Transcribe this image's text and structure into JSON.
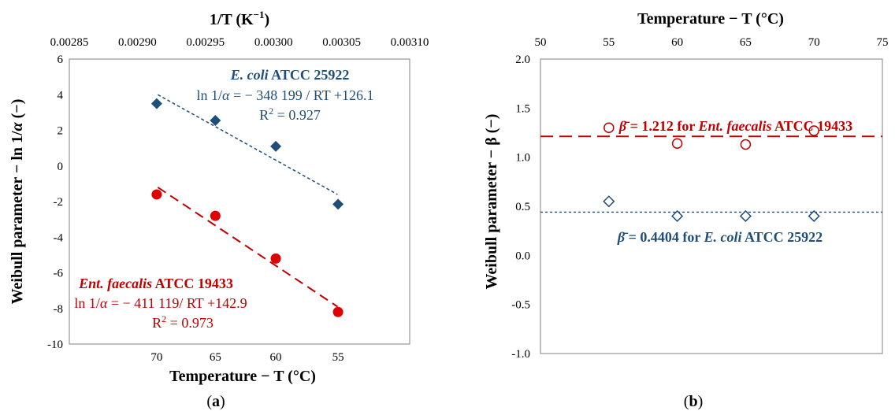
{
  "chart_data": [
    {
      "panel": "a",
      "type": "scatter",
      "panel_label": {
        "open": "(",
        "letter": "a",
        "close": ")"
      },
      "x_top": {
        "label_main": "1/T (K",
        "label_sup": "−1",
        "label_close": ")",
        "range": [
          0.00285,
          0.0031
        ],
        "ticks": [
          "0.00285",
          "0.00290",
          "0.00295",
          "0.00300",
          "0.00305",
          "0.00310"
        ]
      },
      "x_bottom": {
        "label": "Temperature − T (°C)",
        "ticks": [
          "70",
          "65",
          "60",
          "55"
        ]
      },
      "y": {
        "label_main": "Weibull parameter − ln 1/",
        "label_greek": "α",
        "label_tail": " (−)",
        "range": [
          -10,
          6
        ],
        "ticks": [
          "6",
          "4",
          "2",
          "0",
          "-2",
          "-4",
          "-6",
          "-8",
          "-10"
        ]
      },
      "grid": false,
      "series": [
        {
          "name": "E. coli ATCC 25922",
          "marker": "diamond",
          "color": "#1f4e79",
          "temperatures_C": [
            70,
            65,
            60,
            55
          ],
          "values": [
            3.5,
            2.55,
            1.1,
            -2.15
          ],
          "fit": {
            "x": [
              0.002915,
              0.003047
            ],
            "y": [
              4.0,
              -1.6
            ],
            "style": "short-dash"
          }
        },
        {
          "name": "Ent. faecalis ATCC 19433",
          "marker": "circle",
          "color": "#c00000",
          "temperatures_C": [
            70,
            65,
            60,
            55
          ],
          "values": [
            -1.6,
            -2.8,
            -5.2,
            -8.2
          ],
          "fit": {
            "x": [
              0.002915,
              0.003047
            ],
            "y": [
              -1.2,
              -7.9
            ],
            "style": "long-dash"
          }
        }
      ],
      "annotations": {
        "ecoli": {
          "name_italic": "E. coli",
          "name_rest": " ATCC 25922",
          "eq_prefix": "ln 1/",
          "eq_greek": "α",
          "eq_rest": " = − 348 199 / RT +126.1",
          "r2_prefix": "R",
          "r2_sup": "2",
          "r2_rest": " = 0.927"
        },
        "faecalis": {
          "name_italic": "Ent. faecalis",
          "name_rest": " ATCC 19433",
          "eq_prefix": "ln 1/",
          "eq_greek": "α",
          "eq_rest": " = − 411 119/ RT +142.9",
          "r2_prefix": "R",
          "r2_sup": "2",
          "r2_rest": " = 0.973"
        }
      }
    },
    {
      "panel": "b",
      "type": "scatter",
      "panel_label": {
        "open": "(",
        "letter": "b",
        "close": ")"
      },
      "x_top": {
        "label": "Temperature − T (°C)",
        "range": [
          50,
          75
        ],
        "ticks": [
          "50",
          "55",
          "60",
          "65",
          "70",
          "75"
        ]
      },
      "y": {
        "label_main": "Weibull parameter − ",
        "label_greek": "β",
        "label_tail": " (−)",
        "range": [
          -1.0,
          2.0
        ],
        "ticks": [
          "2.0",
          "1.5",
          "1.0",
          "0.5",
          "0.0",
          "-0.5",
          "-1.0"
        ]
      },
      "grid": false,
      "series": [
        {
          "name": "Ent. faecalis ATCC 19433",
          "marker": "open-circle",
          "color": "#c00000",
          "x": [
            55,
            60,
            65,
            70
          ],
          "values": [
            1.3,
            1.14,
            1.13,
            1.27
          ],
          "mean_line": {
            "y": 1.212,
            "style": "long-dash"
          }
        },
        {
          "name": "E. coli ATCC 25922",
          "marker": "open-diamond",
          "color": "#1f4e79",
          "x": [
            55,
            60,
            65,
            70
          ],
          "values": [
            0.55,
            0.4,
            0.4,
            0.4
          ],
          "mean_line": {
            "y": 0.4404,
            "style": "short-dash"
          }
        }
      ],
      "annotations": {
        "faecalis": {
          "symbol": "β̄",
          "text_prefix": " = 1.212 for ",
          "name_italic": "Ent. faecalis",
          "name_rest": " ATCC 19433"
        },
        "ecoli": {
          "symbol": "β̄",
          "text_prefix": " = 0.4404 for ",
          "name_italic": "E. coli",
          "name_rest": " ATCC 25922"
        }
      }
    }
  ]
}
